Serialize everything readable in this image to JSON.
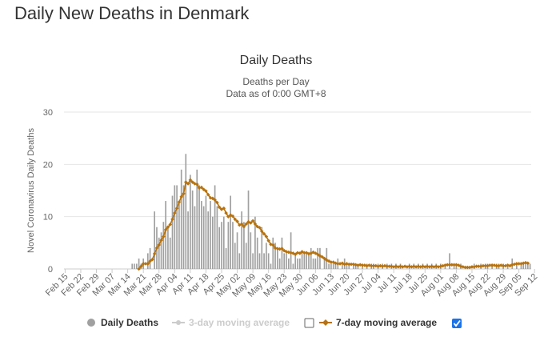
{
  "page": {
    "title": "Daily New Deaths in Denmark"
  },
  "chart_data": {
    "type": "bar",
    "title": "Daily Deaths",
    "subtitle_lines": [
      "Deaths per Day",
      "Data as of 0:00 GMT+8"
    ],
    "ylabel": "Novel Coronavirus Daily Deaths",
    "xlabel": "",
    "ylim": [
      0,
      30
    ],
    "yticks": [
      0,
      10,
      20,
      30
    ],
    "grid": true,
    "x_tick_labels": [
      "Feb 15",
      "Feb 22",
      "Feb 29",
      "Mar 07",
      "Mar 14",
      "Mar 21",
      "Mar 28",
      "Apr 04",
      "Apr 11",
      "Apr 18",
      "Apr 25",
      "May 02",
      "May 09",
      "May 16",
      "May 23",
      "May 30",
      "Jun 06",
      "Jun 13",
      "Jun 20",
      "Jun 27",
      "Jul 04",
      "Jul 11",
      "Jul 18",
      "Jul 25",
      "Aug 01",
      "Aug 08",
      "Aug 15",
      "Aug 22",
      "Aug 29",
      "Sep 05",
      "Sep 12"
    ],
    "series": [
      {
        "name": "Daily Deaths",
        "type": "bar",
        "color": "#a0a0a0",
        "values": [
          0,
          0,
          0,
          0,
          0,
          0,
          0,
          0,
          0,
          0,
          0,
          0,
          0,
          0,
          0,
          0,
          0,
          0,
          0,
          0,
          0,
          0,
          0,
          0,
          0,
          0,
          0,
          0,
          0,
          0,
          1,
          1,
          1,
          2,
          1,
          2,
          0,
          3,
          4,
          0,
          11,
          8,
          6,
          7,
          9,
          13,
          8,
          6,
          14,
          16,
          16,
          13,
          19,
          16,
          22,
          11,
          18,
          15,
          12,
          19,
          16,
          13,
          12,
          14,
          11,
          13,
          10,
          16,
          12,
          8,
          9,
          10,
          4,
          9,
          14,
          9,
          5,
          7,
          3,
          11,
          9,
          5,
          15,
          7,
          3,
          10,
          6,
          3,
          8,
          3,
          5,
          3,
          1,
          6,
          5,
          4,
          2,
          6,
          3,
          3,
          2,
          7,
          1,
          3,
          2,
          2,
          3,
          3,
          3,
          3,
          4,
          2,
          2,
          4,
          4,
          0,
          2,
          4,
          1,
          1,
          1,
          1,
          2,
          0,
          1,
          2,
          1,
          1,
          0,
          1,
          1,
          1,
          0,
          1,
          0,
          1,
          0,
          1,
          1,
          0,
          1,
          0,
          1,
          0,
          1,
          0,
          1,
          0,
          1,
          0,
          1,
          0,
          0,
          0,
          1,
          0,
          1,
          0,
          1,
          0,
          1,
          0,
          1,
          0,
          1,
          0,
          1,
          0,
          1,
          0,
          1,
          0,
          3,
          0,
          1,
          1,
          0,
          1,
          0,
          0,
          0,
          0,
          0,
          1,
          0,
          0,
          1,
          0,
          1,
          1,
          0,
          1,
          0,
          1,
          1,
          0,
          1,
          0,
          1,
          0,
          2,
          0,
          1,
          0,
          1,
          1,
          1,
          1,
          1
        ]
      },
      {
        "name": "3-day moving average",
        "type": "line",
        "color": "#cccccc",
        "visible": false,
        "checked": false
      },
      {
        "name": "7-day moving average",
        "type": "line",
        "color": "#b8720c",
        "visible": true,
        "checked": true,
        "values": [
          null,
          null,
          null,
          null,
          null,
          null,
          null,
          null,
          null,
          null,
          null,
          null,
          null,
          null,
          null,
          null,
          null,
          null,
          null,
          null,
          null,
          null,
          null,
          null,
          null,
          null,
          null,
          null,
          null,
          null,
          null,
          null,
          null,
          0,
          0.5,
          1,
          1,
          1,
          1.5,
          1.8,
          2.9,
          4,
          4.6,
          5.5,
          6.2,
          7.5,
          8,
          8.5,
          9.5,
          10.7,
          11.6,
          12.8,
          13.8,
          14.4,
          16.6,
          16.3,
          17,
          16.6,
          16.3,
          16.2,
          15.5,
          15.6,
          15.2,
          14.9,
          14.2,
          13.6,
          13.5,
          13.2,
          12.7,
          11.8,
          11.4,
          11.6,
          10.7,
          10,
          10.3,
          10.1,
          9.5,
          9.1,
          8.4,
          8.6,
          8.1,
          8.6,
          9,
          8.8,
          9.2,
          8.6,
          8.1,
          7.9,
          7.2,
          6.7,
          6.2,
          5.4,
          4.7,
          4.6,
          4,
          3.9,
          3.8,
          3.9,
          3.5,
          3.3,
          3.2,
          3.1,
          3,
          2.8,
          3.1,
          3,
          3.3,
          3.1,
          3.1,
          2.9,
          3,
          3.2,
          3,
          2.8,
          2.5,
          2.3,
          2,
          1.7,
          1.5,
          1.3,
          1.3,
          1.1,
          1,
          1,
          1.1,
          0.9,
          1,
          0.9,
          0.9,
          0.9,
          0.8,
          0.7,
          0.8,
          0.7,
          0.7,
          0.6,
          0.7,
          0.6,
          0.6,
          0.6,
          0.5,
          0.6,
          0.5,
          0.6,
          0.5,
          0.5,
          0.5,
          0.4,
          0.5,
          0.4,
          0.5,
          0.4,
          0.5,
          0.4,
          0.5,
          0.4,
          0.5,
          0.4,
          0.5,
          0.4,
          0.5,
          0.4,
          0.5,
          0.4,
          0.5,
          0.4,
          0.5,
          0.4,
          0.5,
          0.6,
          0.7,
          0.8,
          0.8,
          0.8,
          0.8,
          0.8,
          0.7,
          0.5,
          0.4,
          0.3,
          0.3,
          0.3,
          0.4,
          0.4,
          0.5,
          0.5,
          0.5,
          0.6,
          0.6,
          0.6,
          0.7,
          0.7,
          0.7,
          0.6,
          0.6,
          0.7,
          0.6,
          0.6,
          0.7,
          0.6,
          0.8,
          0.9,
          1,
          1,
          1,
          1.1,
          1.2,
          1.1
        ]
      }
    ],
    "legend_placement": "bottom"
  }
}
